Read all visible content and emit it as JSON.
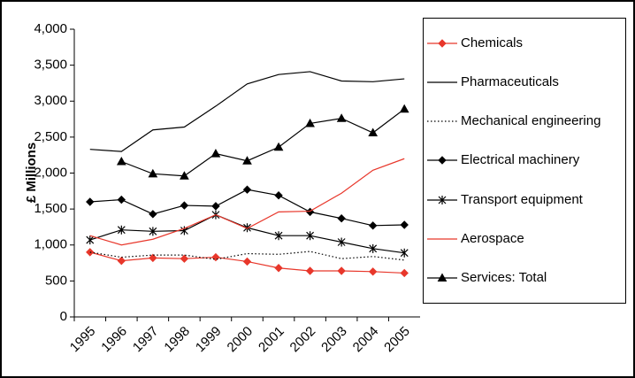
{
  "chart_data": {
    "type": "line",
    "ylabel": "£ Millions",
    "categories": [
      "1995",
      "1996",
      "1997",
      "1998",
      "1999",
      "2000",
      "2001",
      "2002",
      "2003",
      "2004",
      "2005"
    ],
    "ylim": [
      0,
      4000
    ],
    "yticks": [
      0,
      500,
      {
        "value": 1000,
        "label": "1,000"
      },
      {
        "value": 1500,
        "label": "1,500"
      },
      {
        "value": 2000,
        "label": "2,000"
      },
      {
        "value": 2500,
        "label": "2,500"
      },
      {
        "value": 3000,
        "label": "3,000"
      },
      {
        "value": 3500,
        "label": "3,500"
      },
      {
        "value": 4000,
        "label": "4,000"
      }
    ],
    "legend": "right",
    "series": [
      {
        "name": "Chemicals",
        "color": "#e8372b",
        "marker": "diamond",
        "values": [
          900,
          780,
          820,
          810,
          830,
          770,
          680,
          640,
          640,
          630,
          610
        ]
      },
      {
        "name": "Pharmaceuticals",
        "color": "#000000",
        "values": [
          2330,
          2300,
          2600,
          2640,
          2930,
          3240,
          3370,
          3410,
          3280,
          3270,
          3310
        ]
      },
      {
        "name": "Mechanical engineering",
        "color": "#000000",
        "dash": "dotted",
        "values": [
          900,
          830,
          860,
          860,
          800,
          880,
          870,
          910,
          810,
          840,
          790
        ]
      },
      {
        "name": "Electrical machinery",
        "color": "#000000",
        "marker": "diamond",
        "values": [
          1600,
          1630,
          1430,
          1550,
          1540,
          1770,
          1690,
          1460,
          1370,
          1270,
          1280
        ]
      },
      {
        "name": "Transport equipment",
        "color": "#000000",
        "marker": "star",
        "values": [
          1070,
          1210,
          1190,
          1200,
          1420,
          1240,
          1130,
          1130,
          1040,
          950,
          890
        ]
      },
      {
        "name": "Aerospace",
        "color": "#e8372b",
        "values": [
          1130,
          1000,
          1080,
          1230,
          1420,
          1230,
          1460,
          1470,
          1720,
          2040,
          2200
        ]
      },
      {
        "name": "Services: Total",
        "color": "#000000",
        "marker": "triangle",
        "values": [
          null,
          2160,
          1990,
          1960,
          2270,
          2170,
          2360,
          2690,
          2760,
          2560,
          2890
        ]
      }
    ]
  }
}
